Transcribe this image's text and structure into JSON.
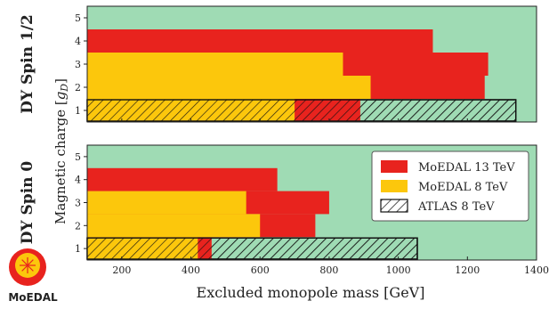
{
  "chart_data": {
    "type": "bar",
    "orientation": "horizontal",
    "stacked_layers": true,
    "xlabel": "Excluded monopole mass [GeV]",
    "ylabel": "Magnetic charge [g_D]",
    "xlim": [
      100,
      1400
    ],
    "ylim": [
      0.5,
      5.5
    ],
    "x_ticks": [
      200,
      400,
      600,
      800,
      1000,
      1200,
      1400
    ],
    "y_ticks": [
      1,
      2,
      3,
      4,
      5
    ],
    "background_color": "#9fdbb4",
    "grid": false,
    "legend": {
      "placement": "right",
      "entries": [
        {
          "label": "MoEDAL 13 TeV",
          "color": "#e8231e",
          "pattern": "solid"
        },
        {
          "label": "MoEDAL 8 TeV",
          "color": "#fcc70c",
          "pattern": "solid"
        },
        {
          "label": "ATLAS 8 TeV",
          "color": "#ffffff",
          "pattern": "hatch"
        }
      ]
    },
    "panels": [
      {
        "label": "DY Spin 1/2",
        "show_x_ticks": false,
        "series": [
          {
            "name": "MoEDAL 13 TeV",
            "values": [
              {
                "charge": 1,
                "max_mass": 890
              },
              {
                "charge": 2,
                "max_mass": 1250
              },
              {
                "charge": 3,
                "max_mass": 1260
              },
              {
                "charge": 4,
                "max_mass": 1100
              }
            ]
          },
          {
            "name": "MoEDAL 8 TeV",
            "values": [
              {
                "charge": 1,
                "max_mass": 700
              },
              {
                "charge": 2,
                "max_mass": 920
              },
              {
                "charge": 3,
                "max_mass": 840
              }
            ]
          },
          {
            "name": "ATLAS 8 TeV",
            "values": [
              {
                "charge": 1,
                "max_mass": 1340
              }
            ]
          }
        ]
      },
      {
        "label": "DY Spin 0",
        "show_x_ticks": true,
        "series": [
          {
            "name": "MoEDAL 13 TeV",
            "values": [
              {
                "charge": 1,
                "max_mass": 460
              },
              {
                "charge": 2,
                "max_mass": 760
              },
              {
                "charge": 3,
                "max_mass": 800
              },
              {
                "charge": 4,
                "max_mass": 650
              }
            ]
          },
          {
            "name": "MoEDAL 8 TeV",
            "values": [
              {
                "charge": 1,
                "max_mass": 420
              },
              {
                "charge": 2,
                "max_mass": 600
              },
              {
                "charge": 3,
                "max_mass": 560
              }
            ]
          },
          {
            "name": "ATLAS 8 TeV",
            "values": [
              {
                "charge": 1,
                "max_mass": 1055
              }
            ]
          }
        ]
      }
    ]
  },
  "logo": {
    "text": "MoEDAL",
    "colors": {
      "red": "#e8231e",
      "yellow": "#fcc70c",
      "blue": "#1e3f8a"
    }
  }
}
